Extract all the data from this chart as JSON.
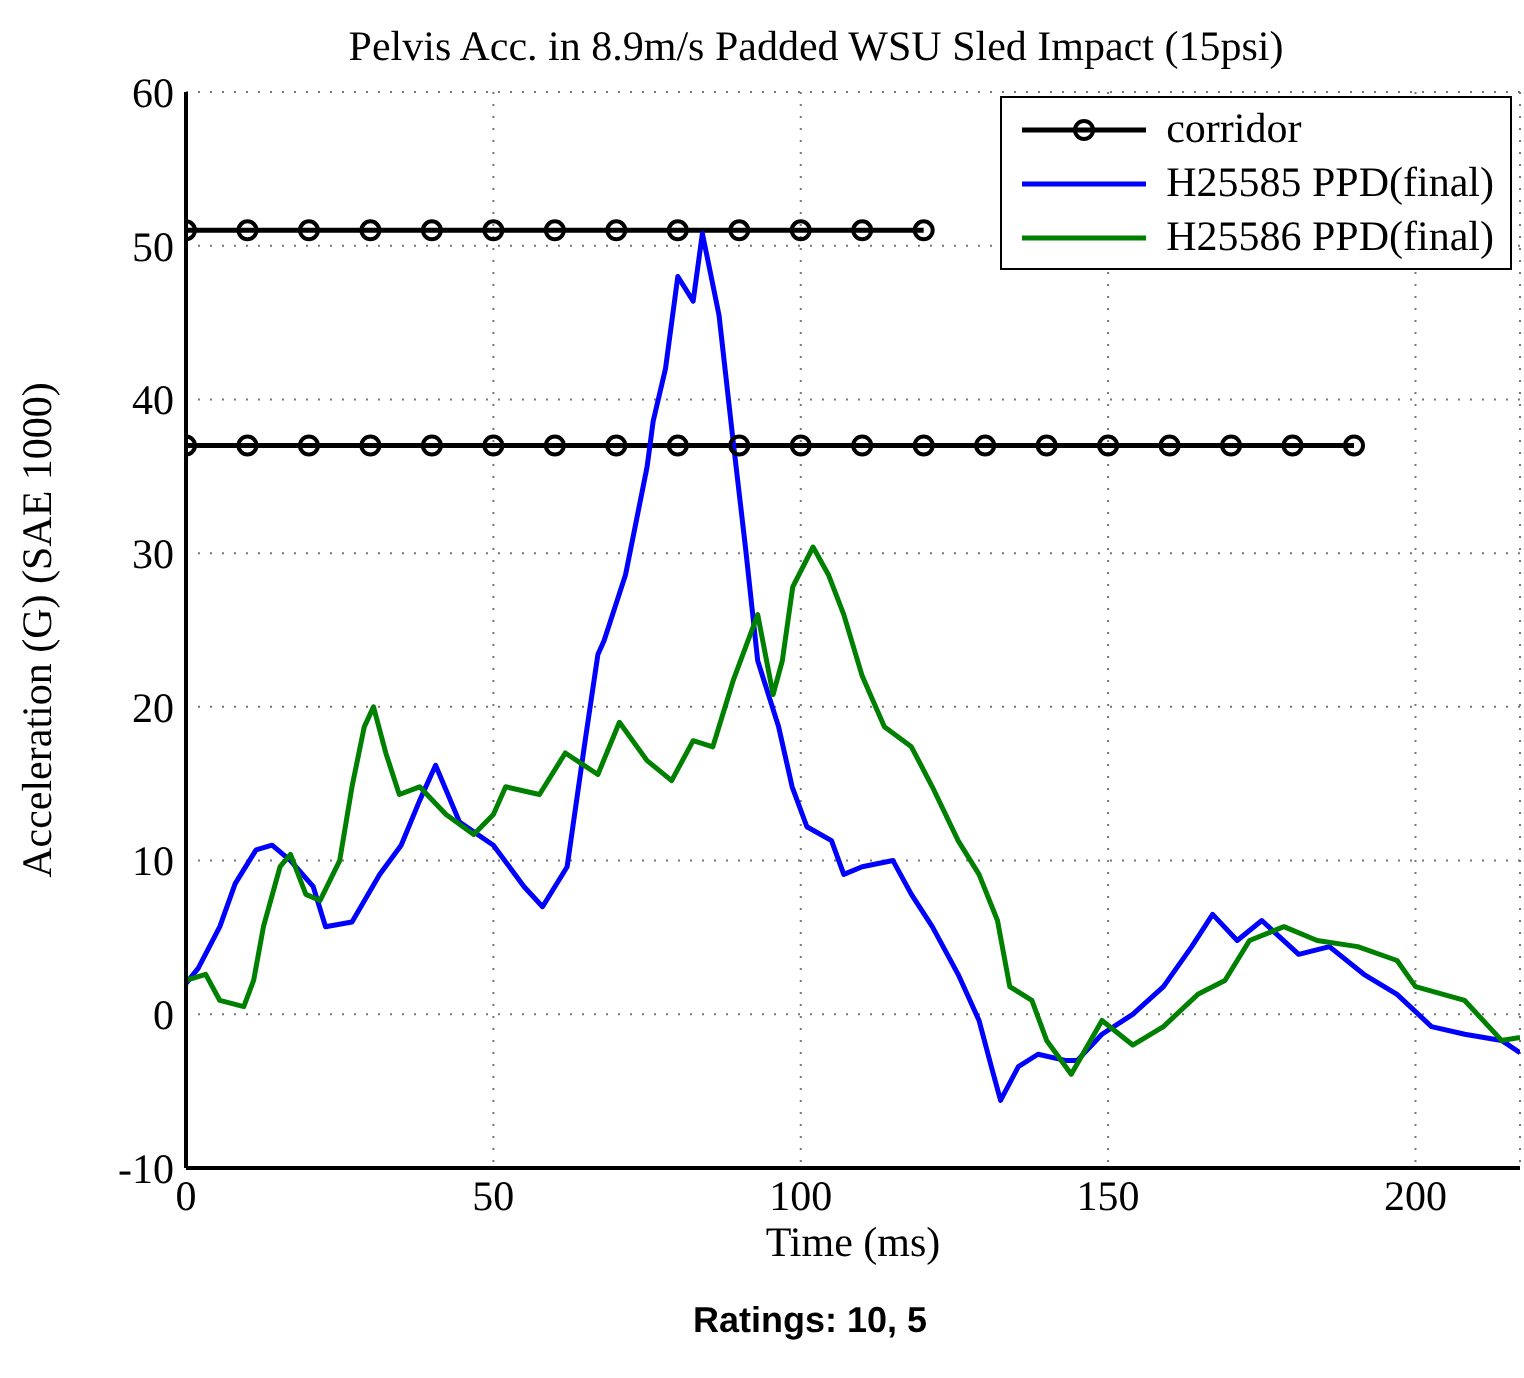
{
  "chart_data": {
    "type": "line",
    "title": "Pelvis Acc. in 8.9m/s Padded WSU Sled Impact (15psi)",
    "xlabel": "Time (ms)",
    "ylabel": "Acceleration (G) (SAE 1000)",
    "annotations": [
      "Ratings: 10, 5"
    ],
    "xlim": [
      0,
      217
    ],
    "ylim": [
      -10,
      60
    ],
    "xticks": [
      0,
      50,
      100,
      150,
      200
    ],
    "yticks": [
      -10,
      0,
      10,
      20,
      30,
      40,
      50,
      60
    ],
    "grid": true,
    "legend": "top right",
    "line_style": "solid",
    "series": [
      {
        "name": "corridor",
        "color": "#000000",
        "marker": "circle",
        "x": [
          0,
          10,
          20,
          30,
          40,
          50,
          60,
          70,
          80,
          90,
          100,
          110,
          120
        ],
        "values": [
          51,
          51,
          51,
          51,
          51,
          51,
          51,
          51,
          51,
          51,
          51,
          51,
          51
        ]
      },
      {
        "color": "#000000",
        "marker": "circle",
        "x": [
          0,
          10,
          20,
          30,
          40,
          50,
          60,
          70,
          80,
          90,
          100,
          110,
          120,
          130,
          140,
          150,
          160,
          170,
          180,
          190
        ],
        "values": [
          37,
          37,
          37,
          37,
          37,
          37,
          37,
          37,
          37,
          37,
          37,
          37,
          37,
          37,
          37,
          37,
          37,
          37,
          37,
          37
        ]
      },
      {
        "name": "H25585 PPD(final)",
        "color": "#0000ff",
        "marker": "none",
        "x": [
          0,
          2,
          5.5,
          8,
          11.4,
          14,
          17,
          20.7,
          22.7,
          27,
          31.5,
          35,
          38,
          40.6,
          44.5,
          50,
          55,
          58,
          62,
          65,
          67,
          68,
          71.5,
          75,
          76,
          78,
          80,
          82.5,
          84,
          86.7,
          89,
          91,
          93,
          96.4,
          98.6,
          101,
          105,
          107,
          110,
          115,
          118,
          121.4,
          125.6,
          129,
          131,
          132.5,
          135.4,
          138.6,
          143,
          145,
          149,
          154,
          159,
          163.6,
          167,
          171,
          175,
          181,
          186,
          191.6,
          197,
          202.6,
          208,
          214,
          217
        ],
        "values": [
          2,
          3,
          5.7,
          8.5,
          10.7,
          11,
          10,
          8.3,
          5.7,
          6,
          9.1,
          11,
          13.9,
          16.2,
          12.5,
          11,
          8.3,
          7,
          9.6,
          18,
          23.4,
          24.3,
          28.6,
          35.6,
          38.6,
          42,
          48,
          46.4,
          50.8,
          45.5,
          37.3,
          30.4,
          23,
          18.7,
          14.8,
          12.2,
          11.3,
          9.1,
          9.6,
          10,
          7.8,
          5.7,
          2.6,
          -0.4,
          -3.4,
          -5.6,
          -3.4,
          -2.6,
          -3,
          -3,
          -1.3,
          0,
          1.8,
          4.4,
          6.5,
          4.8,
          6.1,
          3.9,
          4.4,
          2.6,
          1.3,
          -0.8,
          -1.3,
          -1.7,
          -2.5
        ]
      },
      {
        "name": "H25586 PPD(final)",
        "color": "#008000",
        "marker": "none",
        "x": [
          0,
          3.2,
          5.5,
          9.4,
          11,
          12.6,
          15.3,
          17,
          19.5,
          21.8,
          25,
          27,
          29,
          30.5,
          32.5,
          34.7,
          38,
          42.3,
          46.8,
          50,
          52,
          57.5,
          61.7,
          67,
          70.5,
          75,
          79,
          82.5,
          85.7,
          89,
          93,
          95.5,
          97,
          98.7,
          102,
          104.5,
          107,
          110,
          113.6,
          118,
          121.4,
          125.6,
          129,
          132,
          134,
          137.6,
          140,
          144,
          149,
          154,
          159,
          164.6,
          169,
          173,
          178.6,
          184,
          190.6,
          197,
          200,
          208,
          214,
          217
        ],
        "values": [
          2.2,
          2.6,
          0.9,
          0.5,
          2.2,
          5.7,
          9.6,
          10.4,
          7.8,
          7.4,
          10,
          14.8,
          18.7,
          20,
          17,
          14.3,
          14.8,
          13,
          11.7,
          13,
          14.8,
          14.3,
          17,
          15.6,
          19,
          16.5,
          15.2,
          17.8,
          17.4,
          21.7,
          26,
          20.8,
          23,
          27.8,
          30.4,
          28.6,
          26,
          22,
          18.7,
          17.4,
          14.8,
          11.3,
          9.1,
          6.1,
          1.8,
          0.9,
          -1.7,
          -3.9,
          -0.4,
          -2,
          -0.8,
          1.3,
          2.2,
          4.8,
          5.7,
          4.8,
          4.4,
          3.5,
          1.8,
          0.9,
          -1.7,
          -1.5
        ]
      }
    ]
  }
}
